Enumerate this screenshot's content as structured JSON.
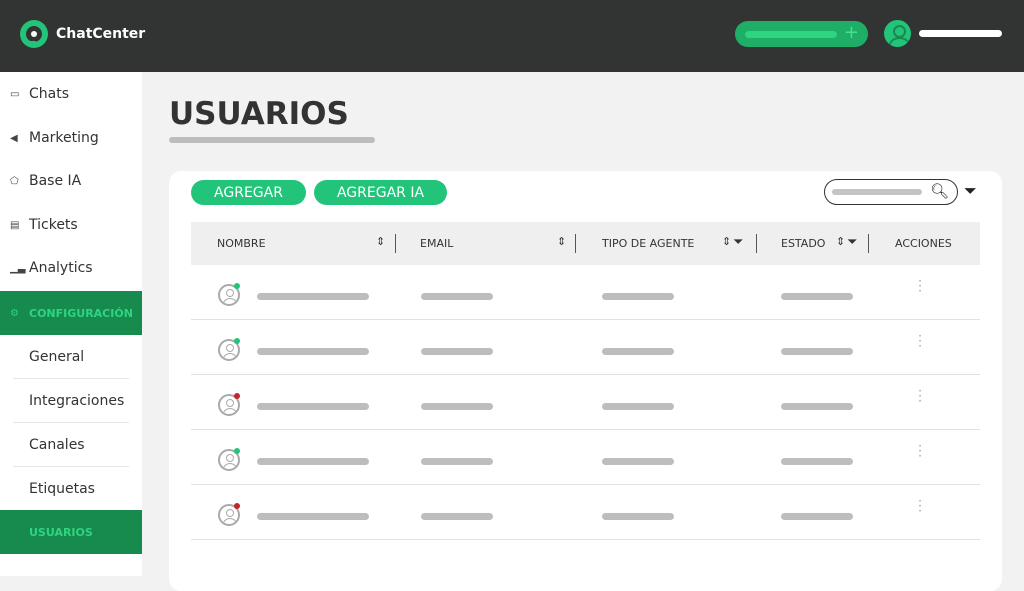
{
  "header": {
    "logo_text": "ChatCenter",
    "action_icon": "plus-icon",
    "avatar_icon": "user-icon"
  },
  "sidebar": {
    "items": [
      {
        "label": "Chats",
        "icon": "chat-icon"
      },
      {
        "label": "Marketing",
        "icon": "megaphone-icon"
      },
      {
        "label": "Base IA",
        "icon": "pentagon-icon"
      },
      {
        "label": "Tickets",
        "icon": "ticket-icon"
      },
      {
        "label": "Analytics",
        "icon": "chart-icon"
      }
    ],
    "section": {
      "label": "CONFIGURACIÓN",
      "icon": "gear-icon"
    },
    "sub_items": [
      {
        "label": "General"
      },
      {
        "label": "Integraciones"
      },
      {
        "label": "Canales"
      },
      {
        "label": "Etiquetas"
      },
      {
        "label": "USUARIOS",
        "active": true
      }
    ]
  },
  "main": {
    "title": "USUARIOS",
    "buttons": {
      "add": "AGREGAR",
      "add_ai": "AGREGAR IA"
    },
    "table": {
      "columns": [
        "NOMBRE",
        "EMAIL",
        "TIPO DE AGENTE",
        "ESTADO",
        "ACCIONES"
      ],
      "rows": [
        {
          "status": "online"
        },
        {
          "status": "online"
        },
        {
          "status": "offline"
        },
        {
          "status": "online"
        },
        {
          "status": "offline"
        }
      ]
    }
  },
  "colors": {
    "brand": "#22c47a",
    "sidebar_active": "#178a4e",
    "header_bg": "#323433",
    "online": "#22c47a",
    "offline": "#c0262c"
  }
}
